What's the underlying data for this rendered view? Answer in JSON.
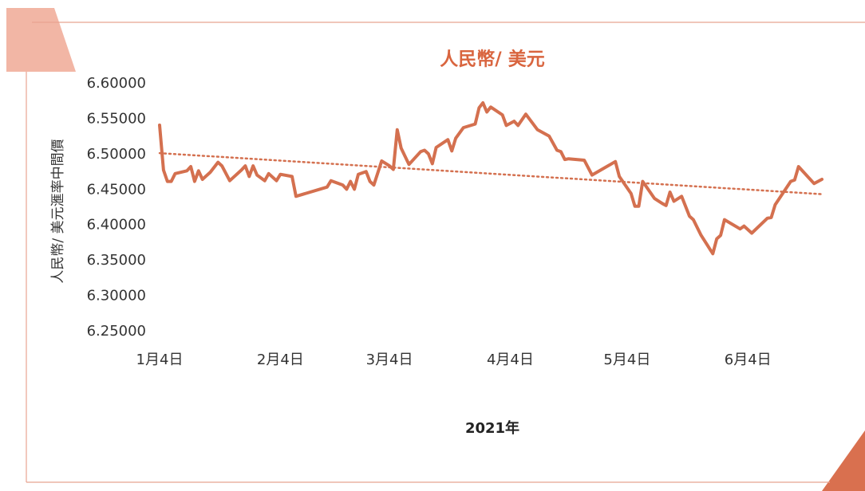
{
  "chart_data": {
    "type": "line",
    "title": "人民幣/ 美元",
    "x_label": "2021年",
    "y_label": "人民幣/ 美元滙率中間價",
    "x": [
      4,
      5,
      6,
      7,
      8,
      11,
      12,
      13,
      14,
      15,
      17,
      19,
      20,
      22,
      25,
      26,
      27,
      28,
      29,
      31,
      32,
      34,
      35,
      38,
      39,
      47,
      48,
      51,
      52,
      53,
      54,
      55,
      57,
      58,
      59,
      61,
      63,
      64,
      65,
      66,
      68,
      71,
      72,
      73,
      74,
      75,
      78,
      79,
      80,
      82,
      85,
      86,
      87,
      88,
      89,
      92,
      93,
      95,
      96,
      98,
      101,
      104,
      106,
      107,
      108,
      109,
      113,
      115,
      121,
      122,
      125,
      126,
      127,
      128,
      131,
      133,
      134,
      135,
      136,
      138,
      140,
      141,
      143,
      146,
      147,
      148,
      149,
      153,
      154,
      156,
      160,
      161,
      162,
      166,
      167,
      168,
      172,
      174
    ],
    "series": [
      {
        "color": "#d4704f",
        "values": [
          6.5415,
          6.478,
          6.462,
          6.462,
          6.473,
          6.477,
          6.483,
          6.462,
          6.477,
          6.465,
          6.475,
          6.489,
          6.484,
          6.463,
          6.478,
          6.484,
          6.469,
          6.484,
          6.471,
          6.463,
          6.473,
          6.463,
          6.472,
          6.469,
          6.441,
          6.454,
          6.463,
          6.457,
          6.451,
          6.462,
          6.451,
          6.472,
          6.476,
          6.462,
          6.457,
          6.491,
          6.484,
          6.479,
          6.535,
          6.509,
          6.486,
          6.504,
          6.506,
          6.501,
          6.487,
          6.51,
          6.521,
          6.505,
          6.523,
          6.538,
          6.543,
          6.566,
          6.573,
          6.56,
          6.567,
          6.556,
          6.541,
          6.547,
          6.541,
          6.557,
          6.535,
          6.526,
          6.506,
          6.504,
          6.493,
          6.494,
          6.492,
          6.471,
          6.49,
          6.469,
          6.445,
          6.427,
          6.427,
          6.462,
          6.438,
          6.431,
          6.428,
          6.447,
          6.434,
          6.441,
          6.413,
          6.408,
          6.386,
          6.36,
          6.381,
          6.386,
          6.408,
          6.395,
          6.399,
          6.389,
          6.41,
          6.411,
          6.429,
          6.462,
          6.464,
          6.483,
          6.459,
          6.465
        ]
      }
    ],
    "trend": {
      "x": [
        4,
        174
      ],
      "values": [
        6.502,
        6.444
      ],
      "color": "#d4704f"
    },
    "xlim": [
      4,
      174
    ],
    "xticks": [
      {
        "value": 4,
        "label": "1月4日"
      },
      {
        "value": 35,
        "label": "2月4日"
      },
      {
        "value": 63,
        "label": "3月4日"
      },
      {
        "value": 94,
        "label": "4月4日"
      },
      {
        "value": 124,
        "label": "5月4日"
      },
      {
        "value": 155,
        "label": "6月4日"
      }
    ],
    "ylim": [
      6.25,
      6.6
    ],
    "yticks": [
      {
        "value": 6.25,
        "label": "6.25000"
      },
      {
        "value": 6.3,
        "label": "6.30000"
      },
      {
        "value": 6.35,
        "label": "6.35000"
      },
      {
        "value": 6.4,
        "label": "6.40000"
      },
      {
        "value": 6.45,
        "label": "6.45000"
      },
      {
        "value": 6.5,
        "label": "6.50000"
      },
      {
        "value": 6.55,
        "label": "6.55000"
      },
      {
        "value": 6.6,
        "label": "6.60000"
      }
    ]
  }
}
